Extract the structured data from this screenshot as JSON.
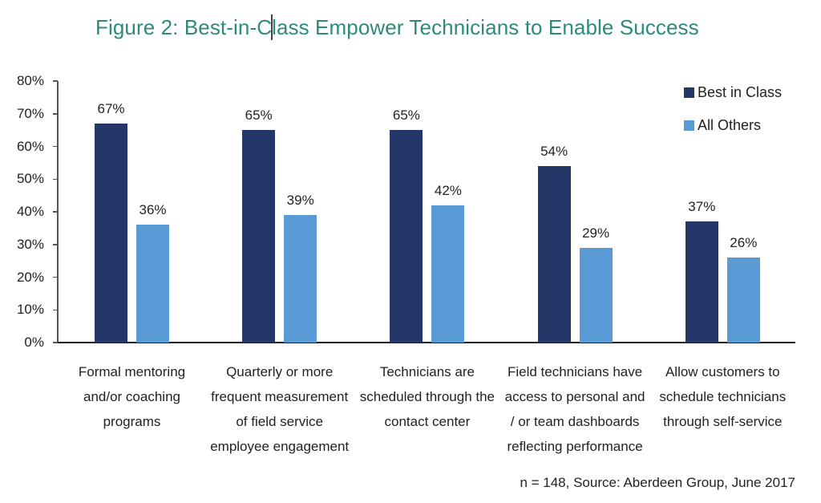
{
  "title": {
    "before_caret": "Figure 2: Best-in-C",
    "after_caret": "lass Empower Technicians to Enable Success",
    "full": "Figure 2: Best-in-Class Empower Technicians to Enable Success"
  },
  "source_note": "n = 148, Source: Aberdeen Group, June 2017",
  "colors": {
    "title": "#2e8b7a",
    "best_in_class": "#253769",
    "all_others": "#5b9bd5"
  },
  "legend": [
    {
      "label": "Best in Class",
      "color": "#253769"
    },
    {
      "label": "All Others",
      "color": "#5b9bd5"
    }
  ],
  "y_ticks": [
    "0%",
    "10%",
    "20%",
    "30%",
    "40%",
    "50%",
    "60%",
    "70%",
    "80%"
  ],
  "chart_data": {
    "type": "bar",
    "title": "Figure 2: Best-in-Class Empower Technicians to Enable Success",
    "xlabel": "",
    "ylabel": "",
    "ylim": [
      0,
      80
    ],
    "y_tick_labels": [
      "0%",
      "10%",
      "20%",
      "30%",
      "40%",
      "50%",
      "60%",
      "70%",
      "80%"
    ],
    "grid": false,
    "legend_position": "top-right",
    "categories": [
      "Formal mentoring and/or coaching programs",
      "Quarterly or more frequent measurement of field service employee engagement",
      "Technicians are scheduled through the contact center",
      "Field technicians have access to personal and / or team dashboards reflecting performance",
      "Allow customers to schedule technicians through self-service"
    ],
    "series": [
      {
        "name": "Best in Class",
        "color": "#253769",
        "values": [
          67,
          65,
          65,
          54,
          37
        ],
        "labels": [
          "67%",
          "65%",
          "65%",
          "54%",
          "37%"
        ]
      },
      {
        "name": "All Others",
        "color": "#5b9bd5",
        "values": [
          36,
          39,
          42,
          29,
          26
        ],
        "labels": [
          "36%",
          "39%",
          "42%",
          "29%",
          "26%"
        ]
      }
    ],
    "annotations": [
      "n = 148, Source: Aberdeen Group, June 2017"
    ]
  },
  "category_lines": [
    [
      "Formal mentoring",
      "and/or coaching",
      "programs"
    ],
    [
      "Quarterly or more",
      "frequent measurement",
      "of field service",
      "employee engagement"
    ],
    [
      "Technicians are",
      "scheduled through the",
      "contact center"
    ],
    [
      "Field technicians have",
      "access to personal and",
      "/ or team dashboards",
      "reflecting performance"
    ],
    [
      "Allow customers to",
      "schedule technicians",
      "through self-service"
    ]
  ]
}
